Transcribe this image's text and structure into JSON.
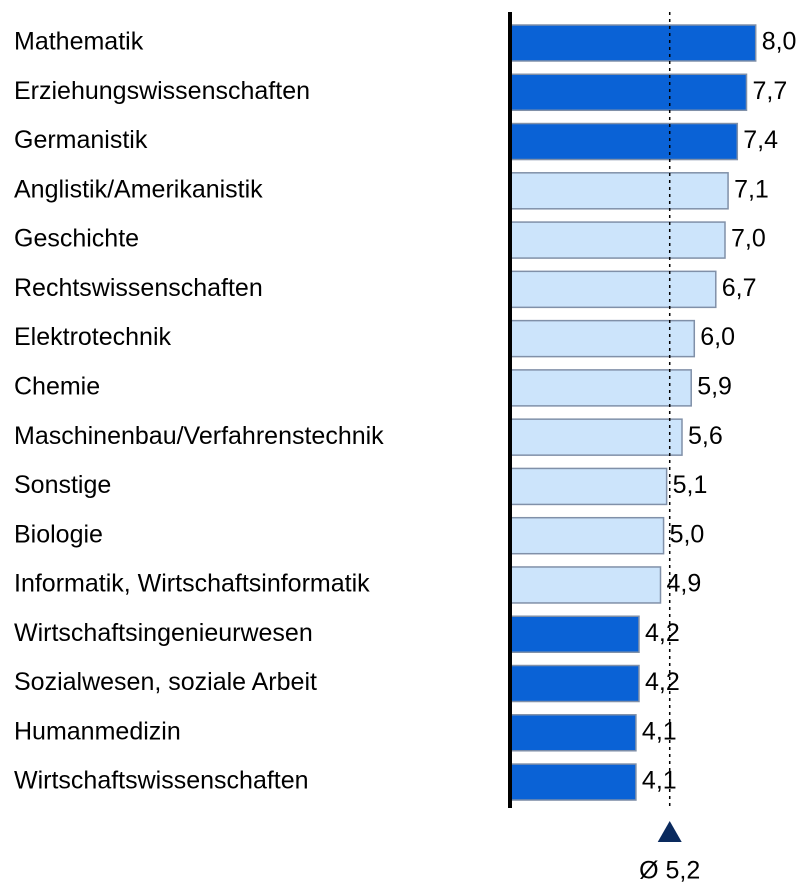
{
  "chart_data": {
    "type": "hbar",
    "categories": [
      "Mathematik",
      "Erziehungswissenschaften",
      "Germanistik",
      "Anglistik/Amerikanistik",
      "Geschichte",
      "Rechtswissenschaften",
      "Elektrotechnik",
      "Chemie",
      "Maschinenbau/Verfahrenstechnik",
      "Sonstige",
      "Biologie",
      "Informatik, Wirtschaftsinformatik",
      "Wirtschaftsingenieurwesen",
      "Sozialwesen, soziale Arbeit",
      "Humanmedizin",
      "Wirtschaftswissenschaften"
    ],
    "values": [
      8.0,
      7.7,
      7.4,
      7.1,
      7.0,
      6.7,
      6.0,
      5.9,
      5.6,
      5.1,
      5.0,
      4.9,
      4.2,
      4.2,
      4.1,
      4.1
    ],
    "value_labels": [
      "8,0",
      "7,7",
      "7,4",
      "7,1",
      "7,0",
      "6,7",
      "6,0",
      "5,9",
      "5,6",
      "5,1",
      "5,0",
      "4,9",
      "4,2",
      "4,2",
      "4,1",
      "4,1"
    ],
    "colors": [
      "#0a62d6",
      "#0a62d6",
      "#0a62d6",
      "#cce4fb",
      "#cce4fb",
      "#cce4fb",
      "#cce4fb",
      "#cce4fb",
      "#cce4fb",
      "#cce4fb",
      "#cce4fb",
      "#cce4fb",
      "#0a62d6",
      "#0a62d6",
      "#0a62d6",
      "#0a62d6"
    ],
    "xlim": [
      0,
      8.4
    ],
    "average": {
      "value": 5.2,
      "label": "Ø 5,2"
    }
  }
}
